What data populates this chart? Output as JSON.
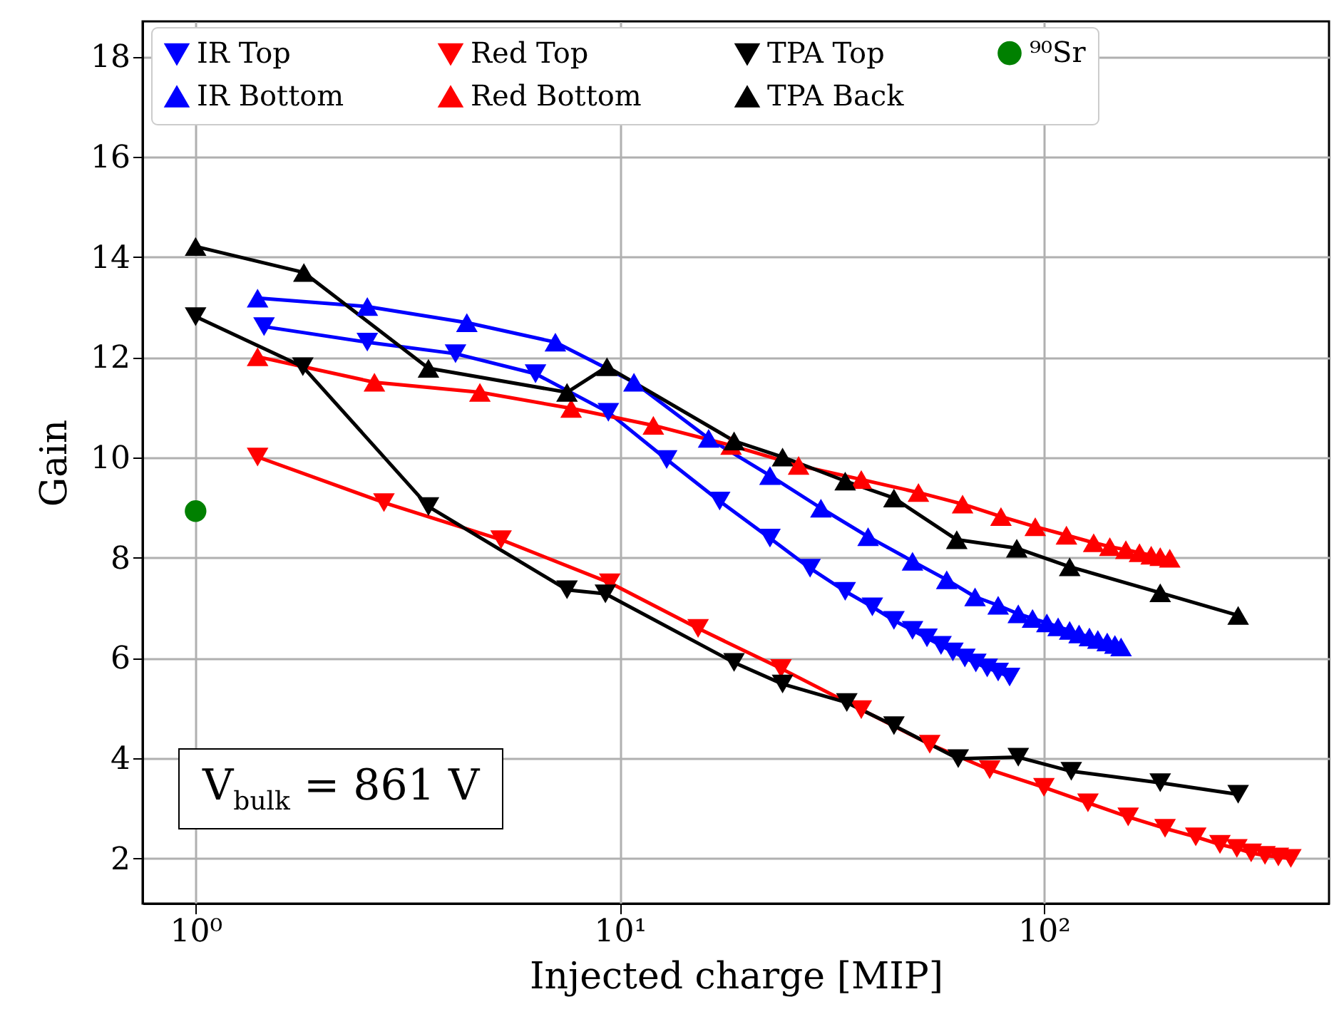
{
  "chart_data": {
    "type": "line",
    "xlabel": "Injected charge [MIP]",
    "ylabel": "Gain",
    "log": "x",
    "grid": true,
    "legend": "top",
    "xlim": [
      0.75,
      470
    ],
    "xticks": [
      {
        "value": 1,
        "label": "10⁰"
      },
      {
        "value": 10,
        "label": "10¹"
      },
      {
        "value": 100,
        "label": "10²"
      }
    ],
    "ylim": [
      1.1,
      18.7
    ],
    "yticks": [
      2,
      4,
      6,
      8,
      10,
      12,
      14,
      16,
      18
    ],
    "annotations": [
      "V$_{bulk}$ = 861 V"
    ],
    "series": [
      {
        "name": "IR Top",
        "color": "#0000ff",
        "marker": "triangle-down",
        "x": [
          1.45,
          2.54,
          4.1,
          6.33,
          9.4,
          12.9,
          17.2,
          22.6,
          28.1,
          34.0,
          39.4,
          44.3,
          49.0,
          53.0,
          57.2,
          61.0,
          65.1,
          69.1,
          73.5,
          78.0,
          83.0
        ],
        "values": [
          12.61,
          12.3,
          12.07,
          11.67,
          10.9,
          9.96,
          9.13,
          8.39,
          7.79,
          7.33,
          7.02,
          6.75,
          6.55,
          6.4,
          6.25,
          6.12,
          6.0,
          5.9,
          5.8,
          5.72,
          5.62
        ]
      },
      {
        "name": "IR Bottom",
        "color": "#0000ff",
        "marker": "triangle",
        "x": [
          1.4,
          2.54,
          4.36,
          7.05,
          10.8,
          16.2,
          22.6,
          29.8,
          38.5,
          49.0,
          59.0,
          68.8,
          78.0,
          87.0,
          94,
          101.6,
          108,
          115,
          121,
          128,
          134,
          141,
          147,
          152
        ],
        "values": [
          13.18,
          13.01,
          12.69,
          12.3,
          11.5,
          10.38,
          9.64,
          8.99,
          8.42,
          7.93,
          7.56,
          7.22,
          7.05,
          6.88,
          6.79,
          6.7,
          6.62,
          6.55,
          6.48,
          6.42,
          6.37,
          6.32,
          6.27,
          6.22
        ]
      },
      {
        "name": "Red Top",
        "color": "#ff0000",
        "marker": "triangle-down",
        "x": [
          1.4,
          2.78,
          5.25,
          9.47,
          15.3,
          24.0,
          37.1,
          53.8,
          74.5,
          100,
          127,
          158,
          193,
          228,
          260,
          285,
          308,
          332,
          357,
          382
        ],
        "values": [
          10.01,
          9.1,
          8.36,
          7.5,
          6.59,
          5.79,
          4.97,
          4.28,
          3.77,
          3.42,
          3.11,
          2.83,
          2.6,
          2.43,
          2.28,
          2.2,
          2.11,
          2.06,
          2.03,
          2.0
        ]
      },
      {
        "name": "Red Bottom",
        "color": "#ff0000",
        "marker": "triangle",
        "x": [
          1.4,
          2.64,
          4.68,
          7.68,
          12.0,
          18.3,
          26.4,
          37.1,
          50.6,
          64.3,
          79.2,
          95.4,
          113,
          131,
          143,
          156,
          168,
          179,
          188,
          198
        ],
        "values": [
          12.01,
          11.5,
          11.3,
          10.98,
          10.64,
          10.24,
          9.84,
          9.56,
          9.3,
          9.07,
          8.82,
          8.62,
          8.45,
          8.3,
          8.22,
          8.16,
          8.1,
          8.05,
          8.02,
          7.99
        ]
      },
      {
        "name": "TPA Top",
        "color": "#000000",
        "marker": "triangle-down",
        "x": [
          1.0,
          1.79,
          3.54,
          7.51,
          9.25,
          18.6,
          24.2,
          34.3,
          44.3,
          62.8,
          87.0,
          116,
          188,
          287
        ],
        "values": [
          12.81,
          11.81,
          9.02,
          7.36,
          7.28,
          5.91,
          5.48,
          5.11,
          4.65,
          3.99,
          4.02,
          3.74,
          3.51,
          3.28
        ]
      },
      {
        "name": "TPA Back",
        "color": "#000000",
        "marker": "triangle",
        "x": [
          1.0,
          1.8,
          3.54,
          7.51,
          9.33,
          18.6,
          24.2,
          34.0,
          44.3,
          62.3,
          86.3,
          115,
          188,
          287
        ],
        "values": [
          14.21,
          13.69,
          11.78,
          11.3,
          11.81,
          10.33,
          10.01,
          9.53,
          9.19,
          8.36,
          8.19,
          7.82,
          7.3,
          6.85
        ]
      },
      {
        "name": "⁹⁰Sr",
        "color": "#008000",
        "type": "scatter",
        "marker": "circle",
        "x": [
          1.0
        ],
        "values": [
          8.93
        ]
      }
    ]
  }
}
